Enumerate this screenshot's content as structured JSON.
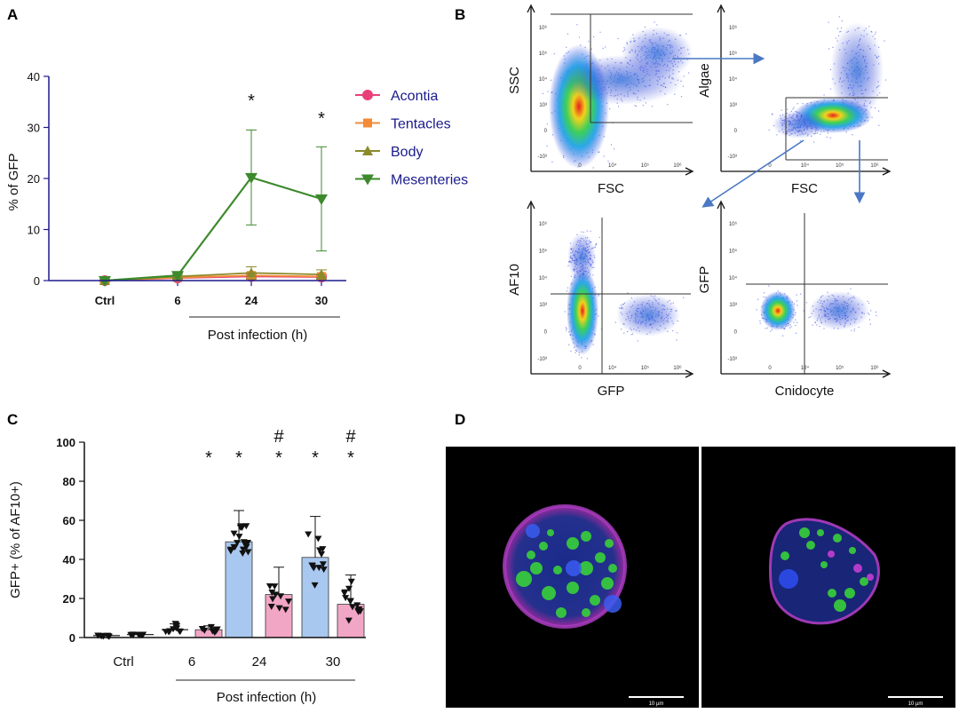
{
  "panels": {
    "a": "A",
    "b": "B",
    "c": "C",
    "d": "D"
  },
  "colors": {
    "acontia": "#e8407a",
    "tentacles": "#f28c38",
    "body": "#8c8a2a",
    "mesenteries": "#3c8a2c",
    "axis_blue": "#1a1a8c",
    "bar_blue": "#a9c8f0",
    "bar_pink": "#f2a6c6",
    "gate_arrow": "#4a78c4"
  },
  "chart_a": {
    "type": "line",
    "ylabel": "% of GFP",
    "ylim": [
      0,
      40
    ],
    "yticks": [
      "0",
      "10",
      "20",
      "30",
      "40"
    ],
    "categories": [
      "Ctrl",
      "6",
      "24",
      "30"
    ],
    "xgroup_label": "Post infection (h)",
    "annotations": [
      "*",
      "*"
    ],
    "series": [
      {
        "name": "Acontia",
        "values": [
          0,
          0.5,
          0.8,
          0.7
        ],
        "errors": [
          0,
          0.3,
          0.5,
          0.4
        ]
      },
      {
        "name": "Tentacles",
        "values": [
          0,
          0.6,
          1.0,
          0.8
        ],
        "errors": [
          0,
          0.3,
          0.6,
          0.5
        ]
      },
      {
        "name": "Body",
        "values": [
          0,
          0.8,
          1.5,
          1.2
        ],
        "errors": [
          0,
          0.4,
          1.2,
          0.9
        ]
      },
      {
        "name": "Mesenteries",
        "values": [
          0,
          1.0,
          20.2,
          16.0
        ],
        "errors": [
          0,
          0.5,
          9.3,
          10.2
        ]
      }
    ]
  },
  "chart_b": {
    "type": "scatter",
    "plots": [
      {
        "xlabel": "FSC",
        "ylabel": "SSC"
      },
      {
        "xlabel": "FSC",
        "ylabel": "Algae"
      },
      {
        "xlabel": "GFP",
        "ylabel": "AF10"
      },
      {
        "xlabel": "Cnidocyte",
        "ylabel": "GFP"
      }
    ],
    "tick_labels": [
      "10⁶",
      "10⁵",
      "10⁴",
      "10³",
      "0",
      "-10³"
    ]
  },
  "chart_c": {
    "type": "bar",
    "ylabel": "GFP+ (% of AF10+)",
    "ylim": [
      0,
      100
    ],
    "yticks": [
      "0",
      "20",
      "40",
      "60",
      "80",
      "100"
    ],
    "group_labels": [
      "Ctrl",
      "6",
      "24",
      "30"
    ],
    "xgroup_label": "Post infection (h)",
    "star": "*",
    "hash": "#",
    "bars": [
      {
        "group": "Ctrl",
        "value": 1.0,
        "error": 0.5,
        "color": "none",
        "n": 8,
        "star": false,
        "hash": false
      },
      {
        "group": "Ctrl",
        "value": 1.5,
        "error": 0.5,
        "color": "none",
        "n": 8,
        "star": false,
        "hash": false
      },
      {
        "group": "6",
        "value": 4.0,
        "error": 3.0,
        "color": "none",
        "n": 10,
        "star": false,
        "hash": false
      },
      {
        "group": "6",
        "value": 4.0,
        "error": 2.0,
        "color": "pink",
        "n": 8,
        "star": true,
        "hash": false
      },
      {
        "group": "24",
        "value": 49,
        "error": 16,
        "color": "blue",
        "n": 18,
        "star": true,
        "hash": false
      },
      {
        "group": "24",
        "value": 22,
        "error": 14,
        "color": "pink",
        "n": 10,
        "star": true,
        "hash": true
      },
      {
        "group": "30",
        "value": 41,
        "error": 21,
        "color": "blue",
        "n": 12,
        "star": true,
        "hash": false
      },
      {
        "group": "30",
        "value": 17,
        "error": 15,
        "color": "pink",
        "n": 14,
        "star": true,
        "hash": true
      }
    ]
  },
  "panel_d": {
    "scale_bar_left": "10 µm",
    "scale_bar_right": "10 µm"
  }
}
